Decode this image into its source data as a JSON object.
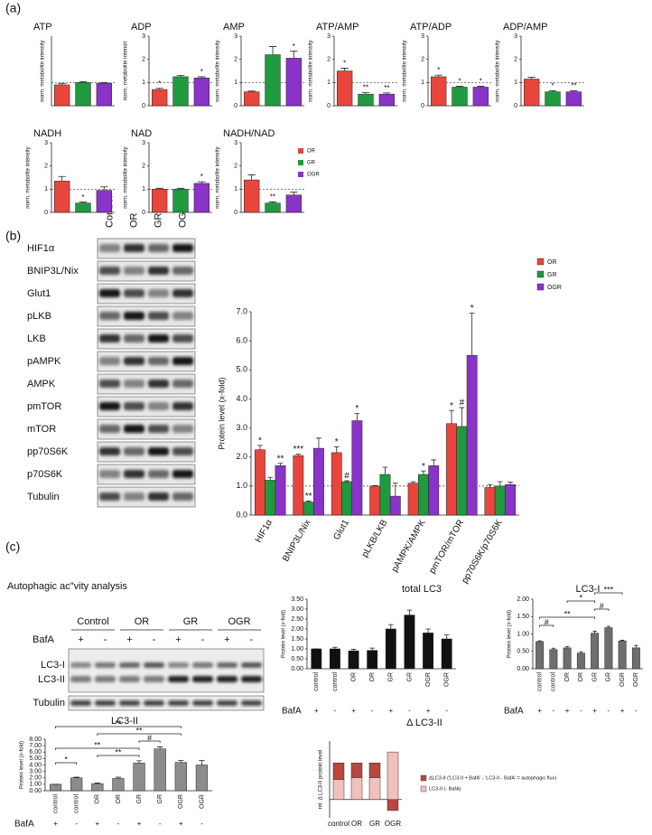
{
  "panel_labels": [
    "(a)",
    "(b)",
    "(c)"
  ],
  "metabolite_legend": [
    {
      "name": "OR",
      "color": "#e8463c"
    },
    {
      "name": "GR",
      "color": "#1f9a3e"
    },
    {
      "name": "OGR",
      "color": "#8a33c8"
    }
  ],
  "blot_b": {
    "lanes": [
      "Control",
      "OR",
      "GR",
      "OGR"
    ],
    "rows": [
      "HIF1α",
      "BNIP3L/Nix",
      "Glut1",
      "pLKB",
      "LKB",
      "pAMPK",
      "AMPK",
      "pmTOR",
      "mTOR",
      "pp70S6K",
      "p70S6K",
      "Tubulin"
    ]
  },
  "blot_c": {
    "title": "Autophagic ac\"vity analysis",
    "groups": [
      "Control",
      "OR",
      "GR",
      "OGR"
    ],
    "bafa_label": "BafA",
    "bafa": [
      "+",
      "-",
      "+",
      "-",
      "+",
      "-",
      "+",
      "-"
    ],
    "rows": [
      "LC3-I",
      "LC3-II",
      "Tubulin"
    ]
  },
  "chart_data": [
    {
      "type": "bar",
      "title": "ATP",
      "ylabel": "norm. metabolite intensity",
      "values": [
        0.9,
        1.0,
        0.97
      ],
      "errors": [
        0.05,
        0.04,
        0.03
      ],
      "ylim": [
        0,
        3
      ],
      "reference_line": 1
    },
    {
      "type": "bar",
      "title": "ADP",
      "ylabel": "norm. metabolite intensit",
      "values": [
        0.7,
        1.25,
        1.2
      ],
      "errors": [
        0.05,
        0.06,
        0.05
      ],
      "ylim": [
        0,
        3
      ],
      "yticks": [
        0,
        1,
        2,
        3
      ],
      "reference_line": 1,
      "annotations": [
        {
          "index": 0,
          "text": "*"
        },
        {
          "index": 2,
          "text": "*"
        }
      ]
    },
    {
      "type": "bar",
      "title": "AMP",
      "ylabel": "norm. metabolite intensity",
      "values": [
        0.6,
        2.2,
        2.05
      ],
      "errors": [
        0.03,
        0.35,
        0.3
      ],
      "ylim": [
        0,
        3
      ],
      "yticks": [
        0,
        1,
        2,
        3
      ],
      "reference_line": 1,
      "annotations": [
        {
          "index": 2,
          "text": "*"
        }
      ]
    },
    {
      "type": "bar",
      "title": "ATP/AMP",
      "ylabel": "norm. metabolite intensity",
      "values": [
        1.5,
        0.5,
        0.5
      ],
      "errors": [
        0.12,
        0.06,
        0.05
      ],
      "ylim": [
        0,
        3
      ],
      "yticks": [
        0,
        1,
        2,
        3
      ],
      "reference_line": 1,
      "annotations": [
        {
          "index": 0,
          "text": "*"
        },
        {
          "index": 1,
          "text": "**"
        },
        {
          "index": 2,
          "text": "**"
        }
      ]
    },
    {
      "type": "bar",
      "title": "ATP/ADP",
      "ylabel": "norm. metabolite intensity",
      "values": [
        1.25,
        0.8,
        0.8
      ],
      "errors": [
        0.07,
        0.04,
        0.04
      ],
      "ylim": [
        0,
        3
      ],
      "yticks": [
        0,
        1,
        2,
        3
      ],
      "reference_line": 1,
      "annotations": [
        {
          "index": 0,
          "text": "*"
        },
        {
          "index": 1,
          "text": "*"
        },
        {
          "index": 2,
          "text": "*"
        }
      ]
    },
    {
      "type": "bar",
      "title": "ADP/AMP",
      "ylabel": "norm. metabolite intensity",
      "values": [
        1.15,
        0.6,
        0.6
      ],
      "errors": [
        0.08,
        0.05,
        0.04
      ],
      "ylim": [
        0,
        3
      ],
      "yticks": [
        0,
        1,
        2,
        3
      ],
      "reference_line": 1,
      "annotations": [
        {
          "index": 1,
          "text": "*"
        },
        {
          "index": 2,
          "text": "**"
        }
      ]
    },
    {
      "type": "bar",
      "title": "NADH",
      "ylabel": "norm. metabolite intensity",
      "values": [
        1.35,
        0.4,
        0.95
      ],
      "errors": [
        0.2,
        0.04,
        0.15
      ],
      "ylim": [
        0,
        3
      ],
      "yticks": [
        0,
        1,
        2,
        3
      ],
      "reference_line": 1,
      "annotations": [
        {
          "index": 1,
          "text": "*"
        }
      ]
    },
    {
      "type": "bar",
      "title": "NAD",
      "ylabel": "norm. metabolite intensity",
      "values": [
        1.0,
        1.0,
        1.25
      ],
      "errors": [
        0.04,
        0.04,
        0.07
      ],
      "ylim": [
        0,
        3
      ],
      "yticks": [
        0,
        1,
        2,
        3
      ],
      "reference_line": 1,
      "annotations": [
        {
          "index": 2,
          "text": "*"
        }
      ]
    },
    {
      "type": "bar",
      "title": "NADH/NAD",
      "ylabel": "norm. metabolite intensity",
      "values": [
        1.4,
        0.4,
        0.75
      ],
      "errors": [
        0.22,
        0.05,
        0.12
      ],
      "ylim": [
        0,
        3
      ],
      "yticks": [
        0,
        1,
        2,
        3
      ],
      "reference_line": 1,
      "annotations": [
        {
          "index": 1,
          "text": "**"
        }
      ]
    },
    {
      "type": "bar",
      "ylabel": "Protein level (x-fold)",
      "categories": [
        "HIF1α",
        "BNIP3L/Nix",
        "Glut1",
        "pLKB/LKB",
        "pAMPK/AMPK",
        "pmTOR/mTOR",
        "pp70S6K/p70S6K"
      ],
      "series": [
        {
          "name": "OR",
          "color": "#e8463c",
          "values": [
            2.25,
            2.05,
            2.15,
            1.0,
            1.1,
            3.15,
            0.95
          ],
          "errors": [
            0.15,
            0.05,
            0.2,
            0.02,
            0.05,
            0.45,
            0.1
          ]
        },
        {
          "name": "GR",
          "color": "#1f9a3e",
          "values": [
            1.2,
            0.45,
            1.15,
            1.4,
            1.4,
            3.05,
            1.0
          ],
          "errors": [
            0.1,
            0.03,
            0.03,
            0.25,
            0.12,
            0.65,
            0.15
          ]
        },
        {
          "name": "OGR",
          "color": "#8a33c8",
          "values": [
            1.7,
            2.3,
            3.25,
            0.65,
            1.7,
            5.5,
            1.05
          ],
          "errors": [
            0.08,
            0.35,
            0.25,
            0.45,
            0.2,
            1.45,
            0.08
          ]
        }
      ],
      "ylim": [
        0,
        7
      ],
      "yticks": [
        {
          "value": 0,
          "label": "0.0"
        },
        {
          "value": 1,
          "label": "1.0"
        },
        {
          "value": 2,
          "label": "2.0"
        },
        {
          "value": 3,
          "label": "3.0"
        },
        {
          "value": 4,
          "label": "4.0"
        },
        {
          "value": 5,
          "label": "5.0"
        },
        {
          "value": 6,
          "label": "6.0"
        },
        {
          "value": 7,
          "label": "7.0"
        }
      ],
      "reference_line": 1,
      "annotations": [
        {
          "series": 0,
          "index": 0,
          "text": "*"
        },
        {
          "series": 2,
          "index": 0,
          "text": "**"
        },
        {
          "series": 0,
          "index": 1,
          "text": "***"
        },
        {
          "series": 1,
          "index": 1,
          "text": "**"
        },
        {
          "series": 0,
          "index": 2,
          "text": "*"
        },
        {
          "series": 1,
          "index": 2,
          "text": "#"
        },
        {
          "series": 2,
          "index": 2,
          "text": "*"
        },
        {
          "series": 1,
          "index": 4,
          "text": "*"
        },
        {
          "series": 0,
          "index": 5,
          "text": "*"
        },
        {
          "series": 1,
          "index": 5,
          "text": "#"
        },
        {
          "series": 2,
          "index": 5,
          "text": "*"
        }
      ]
    },
    {
      "type": "bar",
      "title": "total LC3",
      "ylabel": "Protein level (x-fold)",
      "color": "#111111",
      "categories": [
        "control",
        "control",
        "OR",
        "OR",
        "GR",
        "GR",
        "OGR",
        "OGR"
      ],
      "bafa_label": "BafA",
      "bafa": [
        "+",
        "-",
        "+",
        "-",
        "+",
        "-",
        "+",
        "-"
      ],
      "values": [
        1.0,
        1.0,
        0.9,
        0.92,
        2.0,
        2.7,
        1.8,
        1.5
      ],
      "errors": [
        0,
        0.08,
        0.08,
        0.12,
        0.22,
        0.25,
        0.2,
        0.2
      ],
      "ylim": [
        0,
        3.5
      ],
      "yticks": [
        {
          "value": 0,
          "label": "0.00"
        },
        {
          "value": 0.5,
          "label": "0.50"
        },
        {
          "value": 1,
          "label": "1.00"
        },
        {
          "value": 1.5,
          "label": "1.50"
        },
        {
          "value": 2,
          "label": "2.00"
        },
        {
          "value": 2.5,
          "label": "2.50"
        },
        {
          "value": 3,
          "label": "3.00"
        },
        {
          "value": 3.5,
          "label": "3.50"
        }
      ]
    },
    {
      "type": "bar",
      "title": "LC3-I",
      "ylabel": "Protein level (x-fold)",
      "color": "#6e6e6e",
      "categories": [
        "control",
        "control",
        "OR",
        "OR",
        "GR",
        "GR",
        "OGR",
        "OGR"
      ],
      "bafa_label": "BafA",
      "bafa": [
        "+",
        "-",
        "+",
        "-",
        "+",
        "-",
        "+",
        "-"
      ],
      "values": [
        0.78,
        0.55,
        0.6,
        0.45,
        1.02,
        1.18,
        0.8,
        0.6
      ],
      "errors": [
        0.02,
        0.04,
        0.04,
        0.04,
        0.06,
        0.04,
        0.02,
        0.07
      ],
      "ylim": [
        0,
        2
      ],
      "yticks": [
        {
          "value": 0,
          "label": "0.00"
        },
        {
          "value": 0.5,
          "label": "0.50"
        },
        {
          "value": 1,
          "label": "1.00"
        },
        {
          "value": 1.5,
          "label": "1.50"
        },
        {
          "value": 2,
          "label": "2.00"
        }
      ],
      "comparisons": [
        {
          "from": 4,
          "to": 6,
          "label": "***"
        },
        {
          "from": 2,
          "to": 4,
          "label": "*"
        },
        {
          "from": 4,
          "to": 5,
          "label": "#"
        },
        {
          "from": 0,
          "to": 4,
          "label": "**"
        },
        {
          "from": 0,
          "to": 1,
          "label": "#"
        }
      ]
    },
    {
      "type": "bar",
      "title": "LC3-II",
      "ylabel": "Protein level (x-fold)",
      "color": "#8c8c8c",
      "categories": [
        "control",
        "control",
        "OR",
        "OR",
        "GR",
        "GR",
        "OGR",
        "OGR"
      ],
      "bafa_label": "BafA",
      "bafa": [
        "+",
        "-",
        "+",
        "-",
        "+",
        "-",
        "+",
        "-"
      ],
      "values": [
        1.0,
        2.0,
        1.1,
        1.9,
        4.3,
        6.5,
        4.4,
        4.0
      ],
      "errors": [
        0,
        0.1,
        0.1,
        0.2,
        0.35,
        0.3,
        0.3,
        0.7
      ],
      "ylim": [
        0,
        8
      ],
      "yticks": [
        {
          "value": 0,
          "label": "0.00"
        },
        {
          "value": 1,
          "label": "1.00"
        },
        {
          "value": 2,
          "label": "2.00"
        },
        {
          "value": 3,
          "label": "3.00"
        },
        {
          "value": 4,
          "label": "4.00"
        },
        {
          "value": 5,
          "label": "5.00"
        },
        {
          "value": 6,
          "label": "6.00"
        },
        {
          "value": 7,
          "label": "7.00"
        },
        {
          "value": 8,
          "label": "8.00"
        }
      ],
      "comparisons": [
        {
          "from": 0,
          "to": 6,
          "label": "**"
        },
        {
          "from": 2,
          "to": 6,
          "label": "**"
        },
        {
          "from": 4,
          "to": 5,
          "label": "#"
        },
        {
          "from": 0,
          "to": 4,
          "label": "**"
        },
        {
          "from": 2,
          "to": 4,
          "label": "**"
        },
        {
          "from": 0,
          "to": 1,
          "label": "*"
        }
      ]
    },
    {
      "type": "stacked_bar",
      "title": "Δ LC3-II",
      "ylabel": "rel. Δ LC3-II protein level",
      "categories": [
        "control",
        "OR",
        "GR",
        "OGR"
      ],
      "series": [
        {
          "name": "LC3-II (- BafA)",
          "color": "#f3c1bd",
          "values": [
            0.55,
            0.6,
            0.6,
            1.3
          ]
        },
        {
          "name": "ΔLC3-II ('LC3-II + BafA' - 'LC3-II - BafA' = autophagic flux)",
          "color": "#b8473d",
          "values": [
            0.45,
            0.4,
            0.4,
            -0.3
          ]
        }
      ],
      "ylim": [
        -0.5,
        1.6
      ]
    }
  ]
}
